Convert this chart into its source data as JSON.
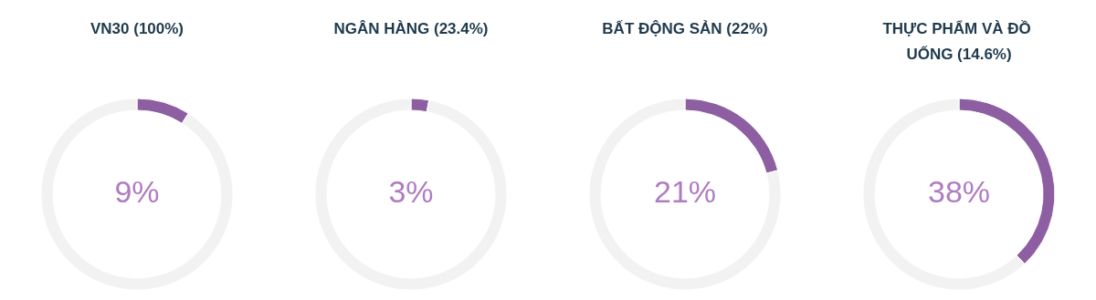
{
  "chart_data": [
    {
      "type": "donut",
      "title": "VN30 (100%)",
      "categories": [
        null,
        null
      ],
      "values": [
        9,
        91
      ],
      "colors": [
        "#8e5ea2",
        "#f2f2f2"
      ],
      "annotations": [
        "9%"
      ]
    },
    {
      "type": "donut",
      "title": "NGÂN HÀNG (23.4%)",
      "categories": [
        null,
        null
      ],
      "values": [
        3,
        97
      ],
      "colors": [
        "#8e5ea2",
        "#f2f2f2"
      ],
      "annotations": [
        "3%"
      ]
    },
    {
      "type": "donut",
      "title": "BẤT ĐỘNG SẢN (22%)",
      "categories": [
        null,
        null
      ],
      "values": [
        21,
        79
      ],
      "colors": [
        "#8e5ea2",
        "#f2f2f2"
      ],
      "annotations": [
        "21%"
      ]
    },
    {
      "type": "donut",
      "title": "THỰC PHẨM VÀ ĐỒ UỐNG (14.6%)",
      "categories": [
        null,
        null
      ],
      "values": [
        38,
        62
      ],
      "colors": [
        "#8e5ea2",
        "#f2f2f2"
      ],
      "annotations": [
        "38%"
      ]
    }
  ]
}
